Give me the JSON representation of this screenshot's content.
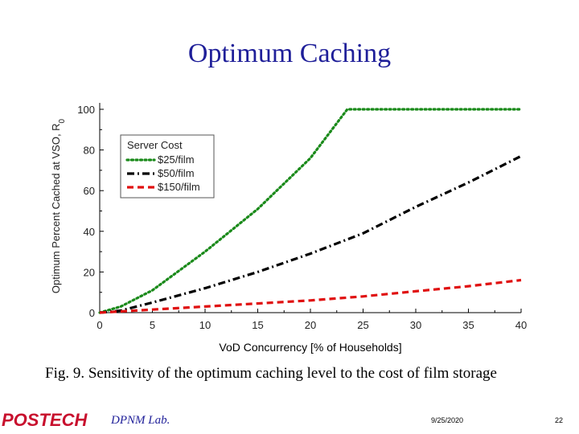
{
  "slide": {
    "title": "Optimum Caching",
    "caption": "Fig. 9. Sensitivity of the optimum caching level to the cost of film storage"
  },
  "footer": {
    "logo": "POSTECH",
    "lab": "DPNM Lab.",
    "date": "9/25/2020",
    "page": "22"
  },
  "colors": {
    "title": "#1f1f99",
    "series_25": "#1a8a1a",
    "series_50": "#000000",
    "series_150": "#e01010",
    "logo": "#c8102e"
  },
  "chart_data": {
    "type": "line",
    "title": "",
    "xlabel": "VoD Concurrency [% of Households]",
    "ylabel": "Optimum Percent Cached at VSO, R",
    "ylabel_subscript": "0",
    "xlim": [
      0,
      40
    ],
    "ylim": [
      0,
      100
    ],
    "xticks": [
      0,
      5,
      10,
      15,
      20,
      25,
      30,
      35,
      40
    ],
    "yticks": [
      0,
      20,
      40,
      60,
      80,
      100
    ],
    "grid": false,
    "legend": {
      "title": "Server Cost",
      "position": "top-left"
    },
    "series": [
      {
        "name": "$25/film",
        "style": "dotted",
        "x": [
          0,
          2,
          5,
          10,
          15,
          20,
          23.5,
          25,
          30,
          35,
          40
        ],
        "y": [
          0,
          3,
          11,
          30,
          51,
          76,
          100,
          100,
          100,
          100,
          100
        ]
      },
      {
        "name": "$50/film",
        "style": "dashdot",
        "x": [
          0,
          2,
          5,
          10,
          15,
          20,
          25,
          30,
          35,
          40
        ],
        "y": [
          0,
          1,
          5,
          12,
          20,
          29,
          39,
          52,
          64,
          77
        ]
      },
      {
        "name": "$150/film",
        "style": "dashed",
        "x": [
          0,
          5,
          10,
          15,
          20,
          25,
          30,
          35,
          40
        ],
        "y": [
          0,
          1.5,
          3,
          4.5,
          6,
          8,
          10.5,
          13,
          16
        ]
      }
    ]
  }
}
